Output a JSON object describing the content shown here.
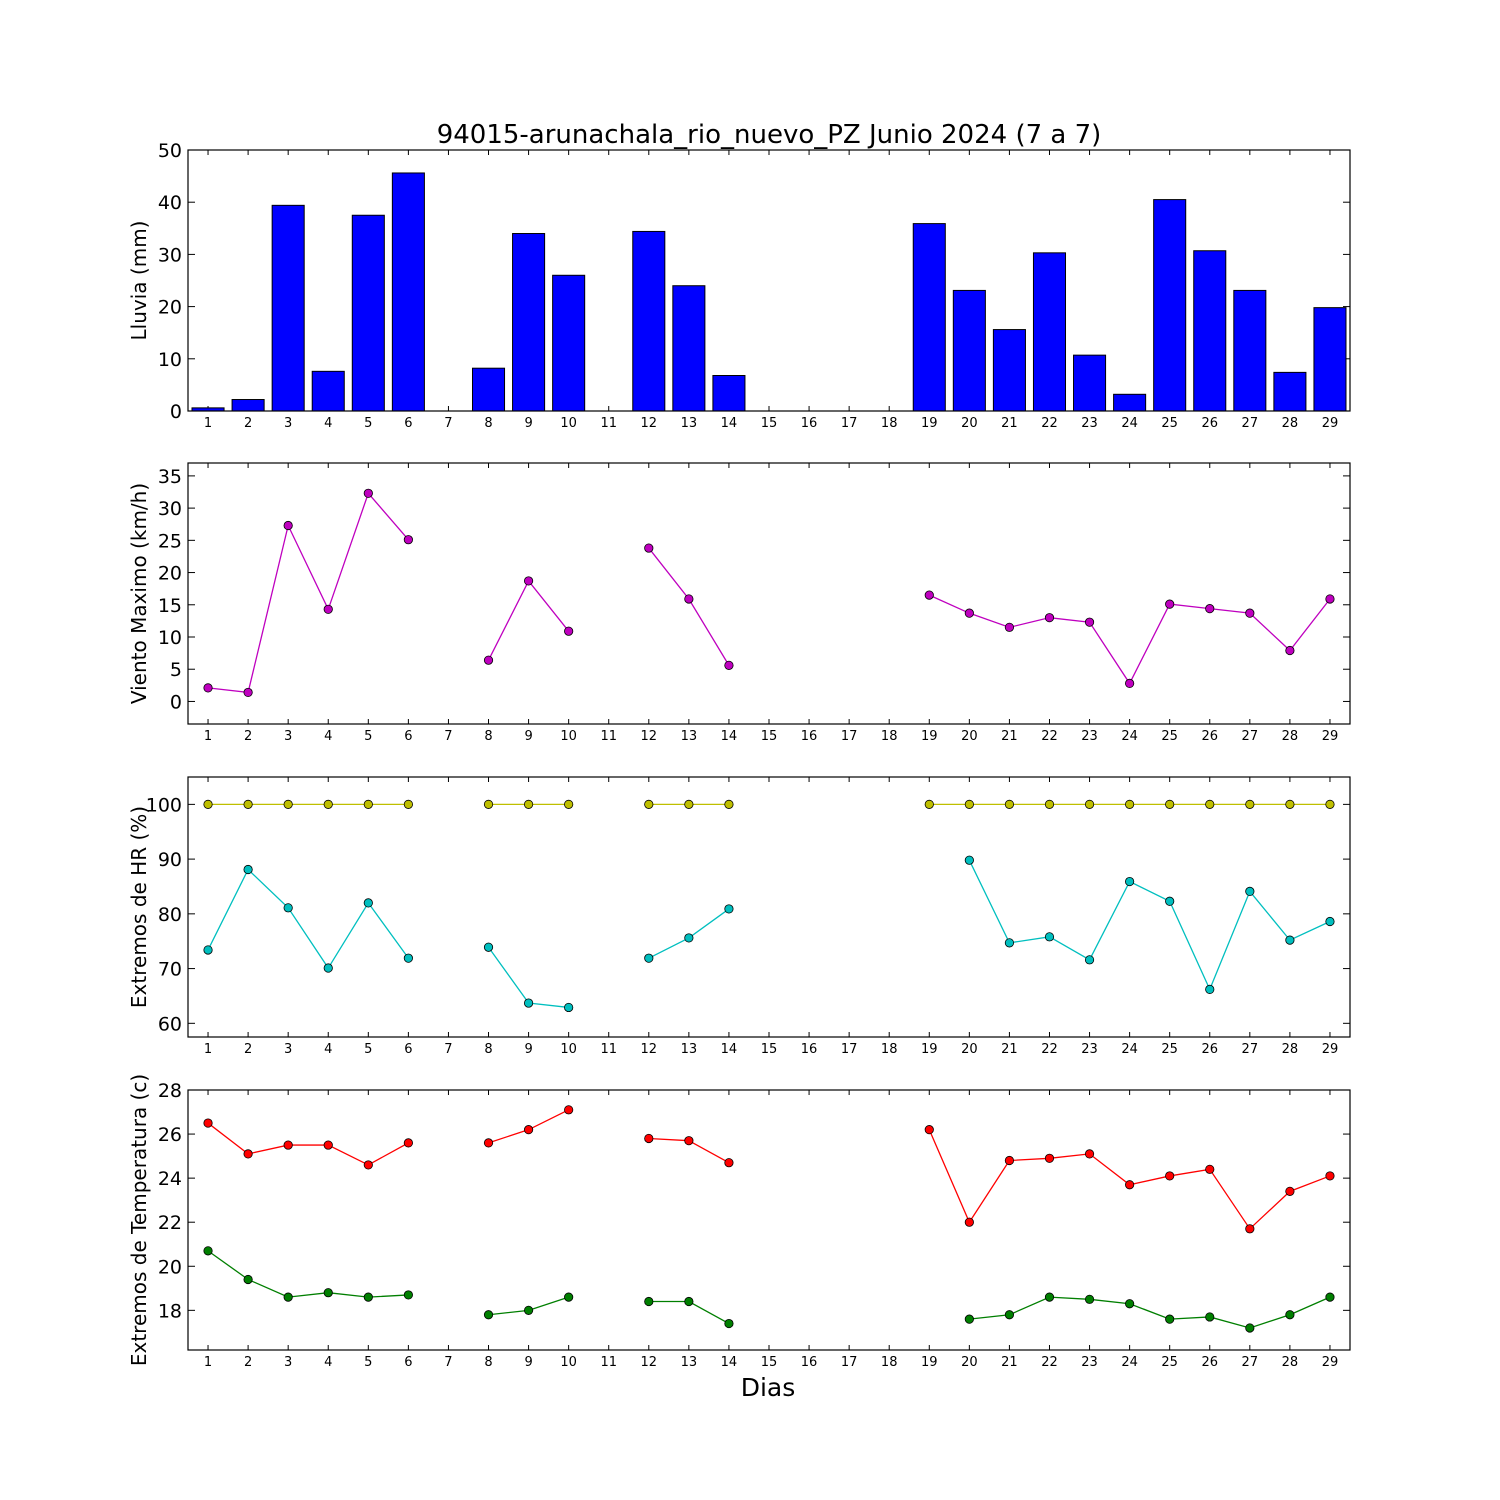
{
  "title": "94015-arunachala_rio_nuevo_PZ Junio 2024  (7 a 7)",
  "xlabel": "Dias",
  "chart_data": [
    {
      "type": "bar",
      "ylabel": "Lluvia (mm)",
      "ylim": [
        0,
        50
      ],
      "yticks": [
        0,
        10,
        20,
        30,
        40,
        50
      ],
      "categories": [
        1,
        2,
        3,
        4,
        5,
        6,
        7,
        8,
        9,
        10,
        11,
        12,
        13,
        14,
        15,
        16,
        17,
        18,
        19,
        20,
        21,
        22,
        23,
        24,
        25,
        26,
        27,
        28,
        29
      ],
      "series": [
        {
          "color": "#0000ff",
          "values": [
            0.6,
            2.2,
            39.4,
            7.6,
            37.5,
            45.6,
            0,
            8.2,
            34.0,
            26.0,
            0,
            34.4,
            24.0,
            6.8,
            0,
            0,
            0,
            0,
            35.9,
            23.1,
            15.6,
            30.3,
            10.7,
            3.2,
            40.5,
            30.7,
            23.1,
            7.4,
            19.8
          ]
        }
      ]
    },
    {
      "type": "line",
      "ylabel": "Viento Maximo (km/h)",
      "ylim": [
        -3.5,
        37
      ],
      "yticks": [
        0,
        5,
        10,
        15,
        20,
        25,
        30,
        35
      ],
      "categories": [
        1,
        2,
        3,
        4,
        5,
        6,
        7,
        8,
        9,
        10,
        11,
        12,
        13,
        14,
        15,
        16,
        17,
        18,
        19,
        20,
        21,
        22,
        23,
        24,
        25,
        26,
        27,
        28,
        29
      ],
      "series": [
        {
          "color": "#bf00bf",
          "values": [
            2.1,
            1.4,
            27.3,
            14.3,
            32.3,
            25.1,
            null,
            6.4,
            18.7,
            10.9,
            null,
            23.8,
            15.9,
            5.6,
            null,
            null,
            null,
            null,
            16.5,
            13.7,
            11.5,
            13.0,
            12.3,
            2.8,
            15.1,
            14.4,
            13.7,
            7.9,
            15.9
          ]
        }
      ]
    },
    {
      "type": "line",
      "ylabel": "Extremos de HR (%)",
      "ylim": [
        57.5,
        105
      ],
      "yticks": [
        60,
        70,
        80,
        90,
        100
      ],
      "categories": [
        1,
        2,
        3,
        4,
        5,
        6,
        7,
        8,
        9,
        10,
        11,
        12,
        13,
        14,
        15,
        16,
        17,
        18,
        19,
        20,
        21,
        22,
        23,
        24,
        25,
        26,
        27,
        28,
        29
      ],
      "series": [
        {
          "color": "#bfbf00",
          "values": [
            100,
            100,
            100,
            100,
            100,
            100,
            null,
            100,
            100,
            100,
            null,
            100,
            100,
            100,
            null,
            null,
            null,
            null,
            100,
            100,
            100,
            100,
            100,
            100,
            100,
            100,
            100,
            100,
            100
          ]
        },
        {
          "color": "#00bfbf",
          "values": [
            73.4,
            88.1,
            81.1,
            70.1,
            82.0,
            71.9,
            null,
            73.9,
            63.7,
            62.9,
            null,
            71.9,
            75.6,
            80.9,
            null,
            null,
            null,
            null,
            null,
            89.8,
            74.7,
            75.8,
            71.6,
            85.9,
            82.3,
            66.2,
            84.1,
            75.2,
            78.6
          ]
        }
      ]
    },
    {
      "type": "line",
      "ylabel": "Extremos de Temperatura (c)",
      "ylim": [
        16.2,
        28
      ],
      "yticks": [
        18,
        20,
        22,
        24,
        26,
        28
      ],
      "categories": [
        1,
        2,
        3,
        4,
        5,
        6,
        7,
        8,
        9,
        10,
        11,
        12,
        13,
        14,
        15,
        16,
        17,
        18,
        19,
        20,
        21,
        22,
        23,
        24,
        25,
        26,
        27,
        28,
        29
      ],
      "series": [
        {
          "color": "#ff0000",
          "values": [
            26.5,
            25.1,
            25.5,
            25.5,
            24.6,
            25.6,
            null,
            25.6,
            26.2,
            27.1,
            null,
            25.8,
            25.7,
            24.7,
            null,
            null,
            null,
            null,
            26.2,
            22.0,
            24.8,
            24.9,
            25.1,
            23.7,
            24.1,
            24.4,
            21.7,
            23.4,
            24.1
          ]
        },
        {
          "color": "#007f00",
          "values": [
            20.7,
            19.4,
            18.6,
            18.8,
            18.6,
            18.7,
            null,
            17.8,
            18.0,
            18.6,
            null,
            18.4,
            18.4,
            17.4,
            null,
            null,
            null,
            null,
            null,
            17.6,
            17.8,
            18.6,
            18.5,
            18.3,
            17.6,
            17.7,
            17.2,
            17.8,
            18.6
          ]
        }
      ]
    }
  ]
}
